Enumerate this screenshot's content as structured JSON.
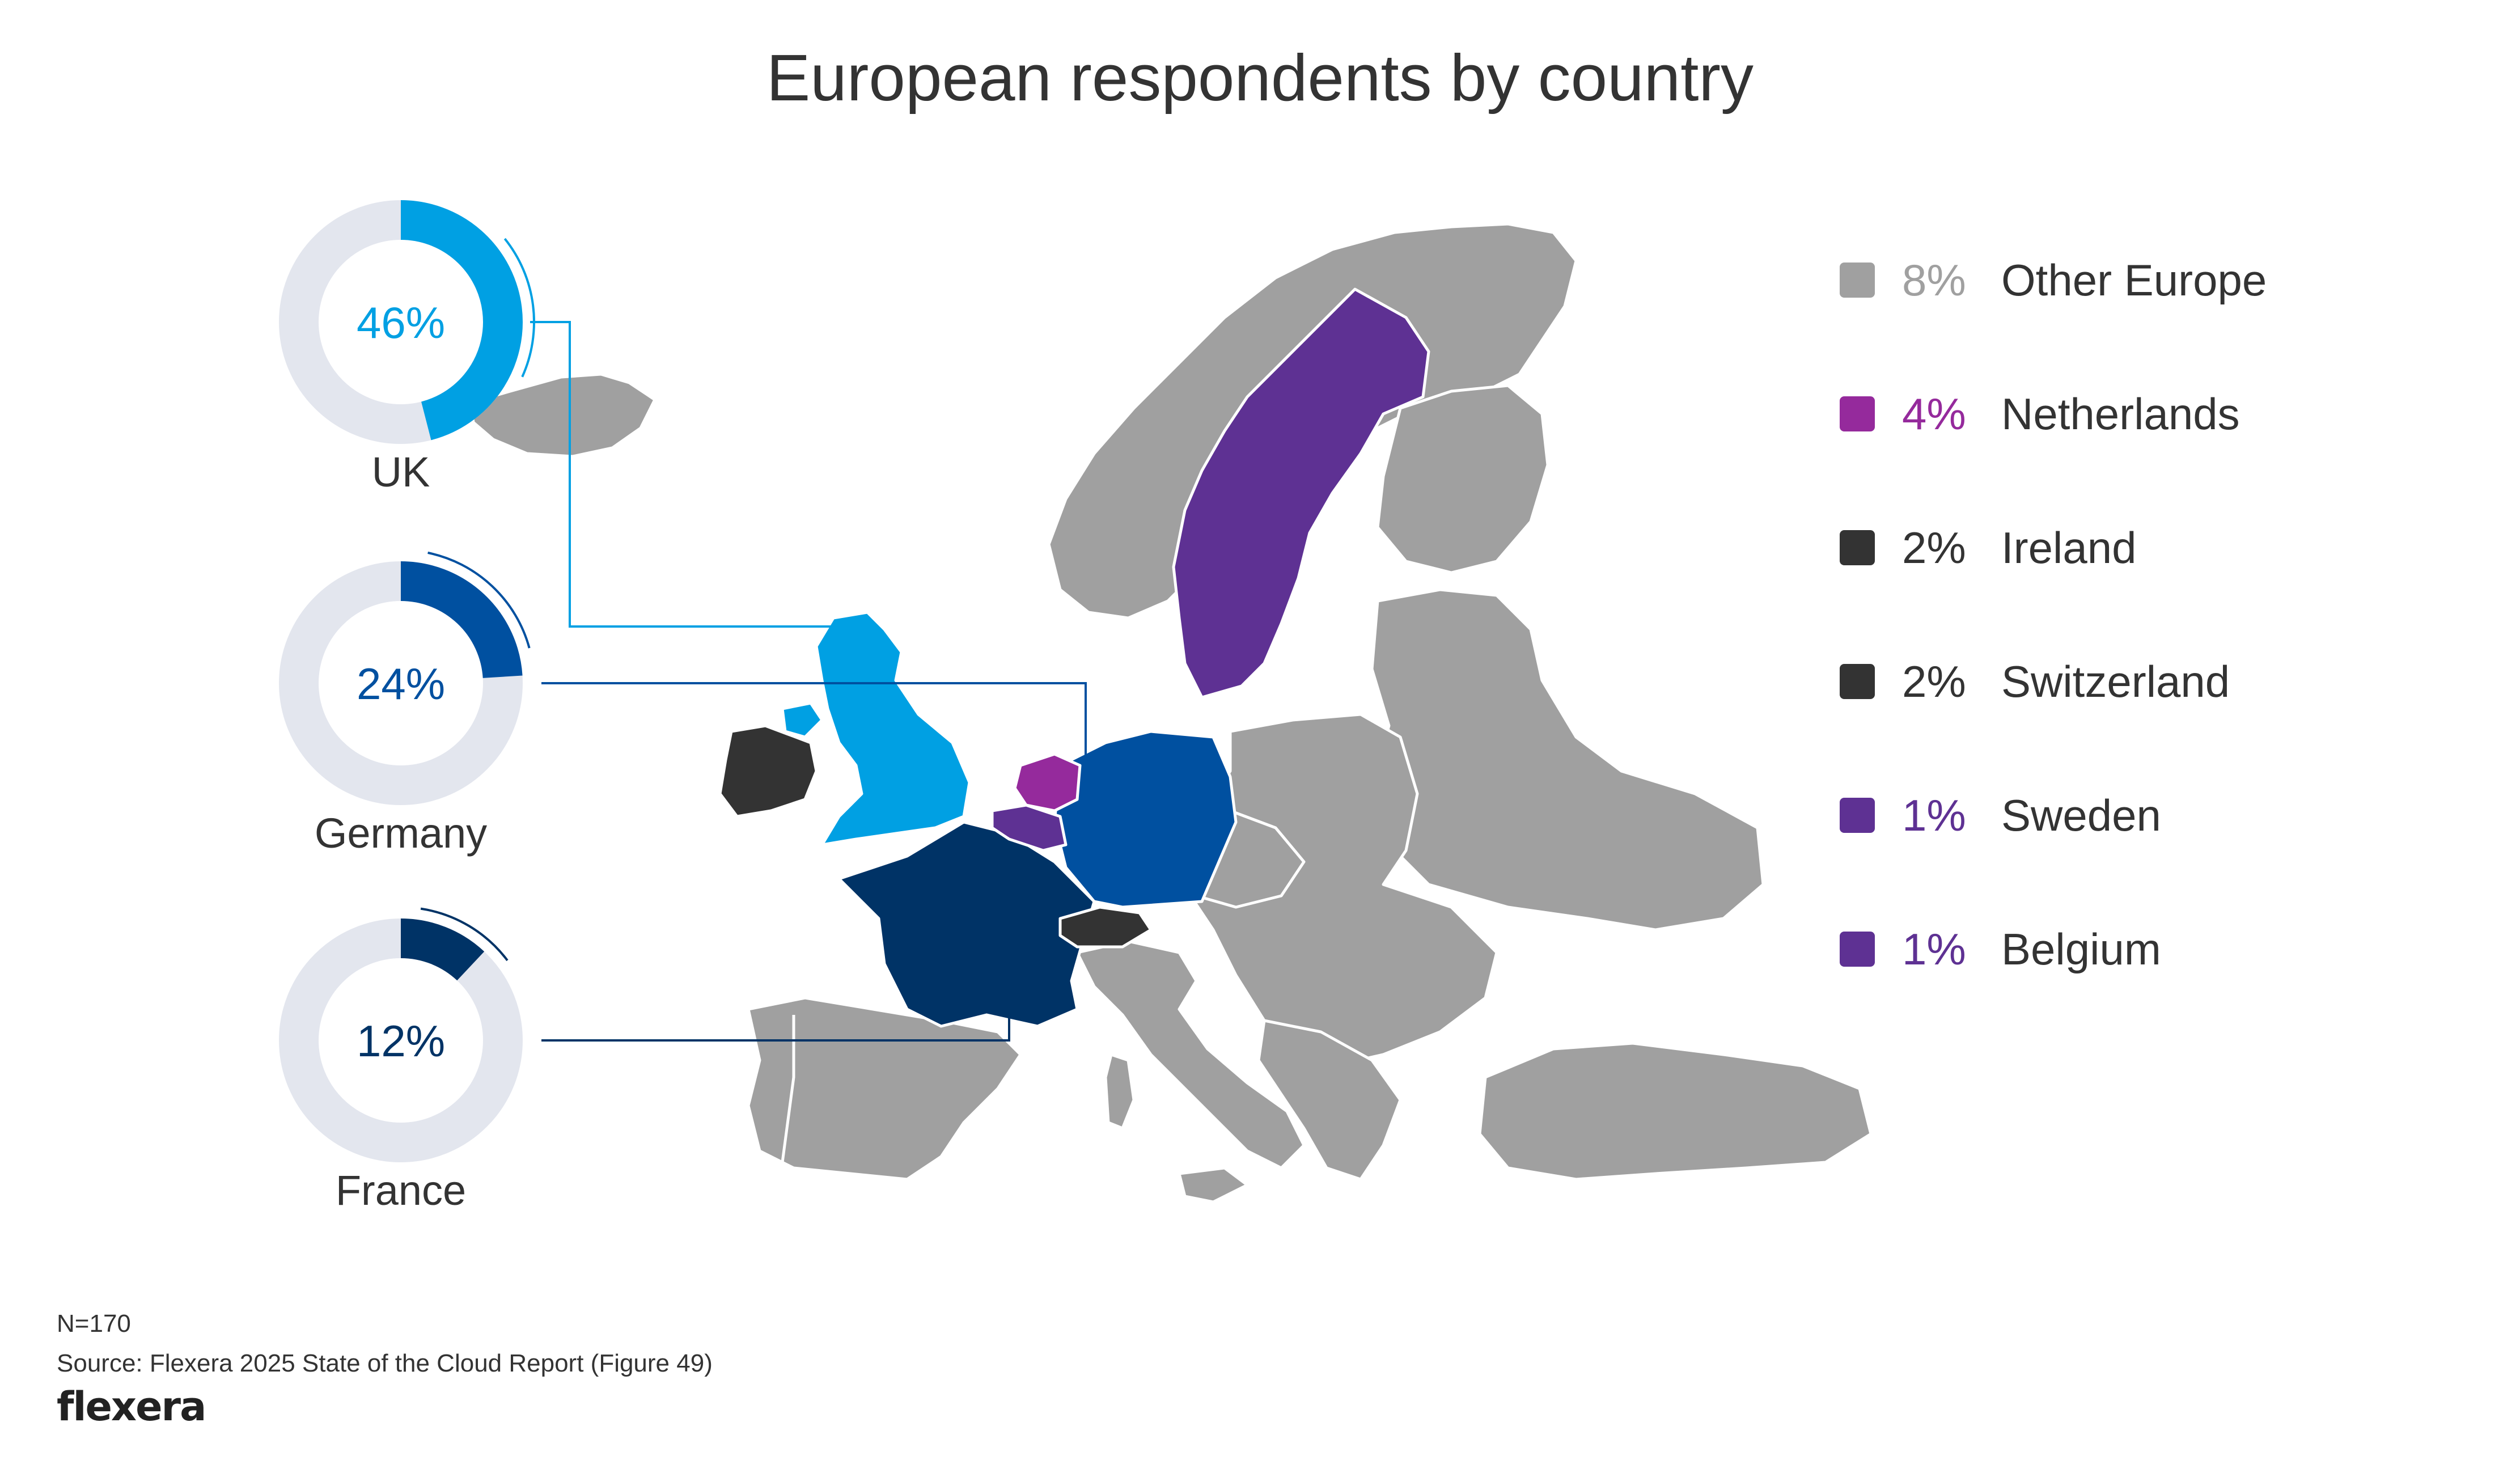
{
  "title": "European respondents by country",
  "colors": {
    "uk": "#00A0E3",
    "germany": "#0050A0",
    "france": "#003366",
    "track": "#E3E6EE",
    "other": "#A0A0A0",
    "netherlands": "#952A9C",
    "dark": "#333333",
    "purple": "#5E3193",
    "border": "#ffffff"
  },
  "chart_data": [
    {
      "type": "pie",
      "title": "",
      "series": [
        {
          "name": "UK",
          "value": 46,
          "label": "46%"
        },
        {
          "name": "Germany",
          "value": 24,
          "label": "24%"
        },
        {
          "name": "France",
          "value": 12,
          "label": "12%"
        }
      ]
    },
    {
      "type": "table",
      "title": "",
      "rows": [
        {
          "pct": "8%",
          "name": "Other Europe",
          "value": 8,
          "color": "#A0A0A0",
          "pct_color": "#A0A0A0"
        },
        {
          "pct": "4%",
          "name": "Netherlands",
          "value": 4,
          "color": "#952A9C",
          "pct_color": "#952A9C"
        },
        {
          "pct": "2%",
          "name": "Ireland",
          "value": 2,
          "color": "#333333",
          "pct_color": "#333333"
        },
        {
          "pct": "2%",
          "name": "Switzerland",
          "value": 2,
          "color": "#333333",
          "pct_color": "#333333"
        },
        {
          "pct": "1%",
          "name": "Sweden",
          "value": 1,
          "color": "#5E3193",
          "pct_color": "#5E3193"
        },
        {
          "pct": "1%",
          "name": "Belgium",
          "value": 1,
          "color": "#5E3193",
          "pct_color": "#5E3193"
        }
      ]
    }
  ],
  "footer": {
    "n": "N=170",
    "source": "Source: Flexera 2025 State of the Cloud Report (Figure 49)"
  },
  "logo": "flexera"
}
